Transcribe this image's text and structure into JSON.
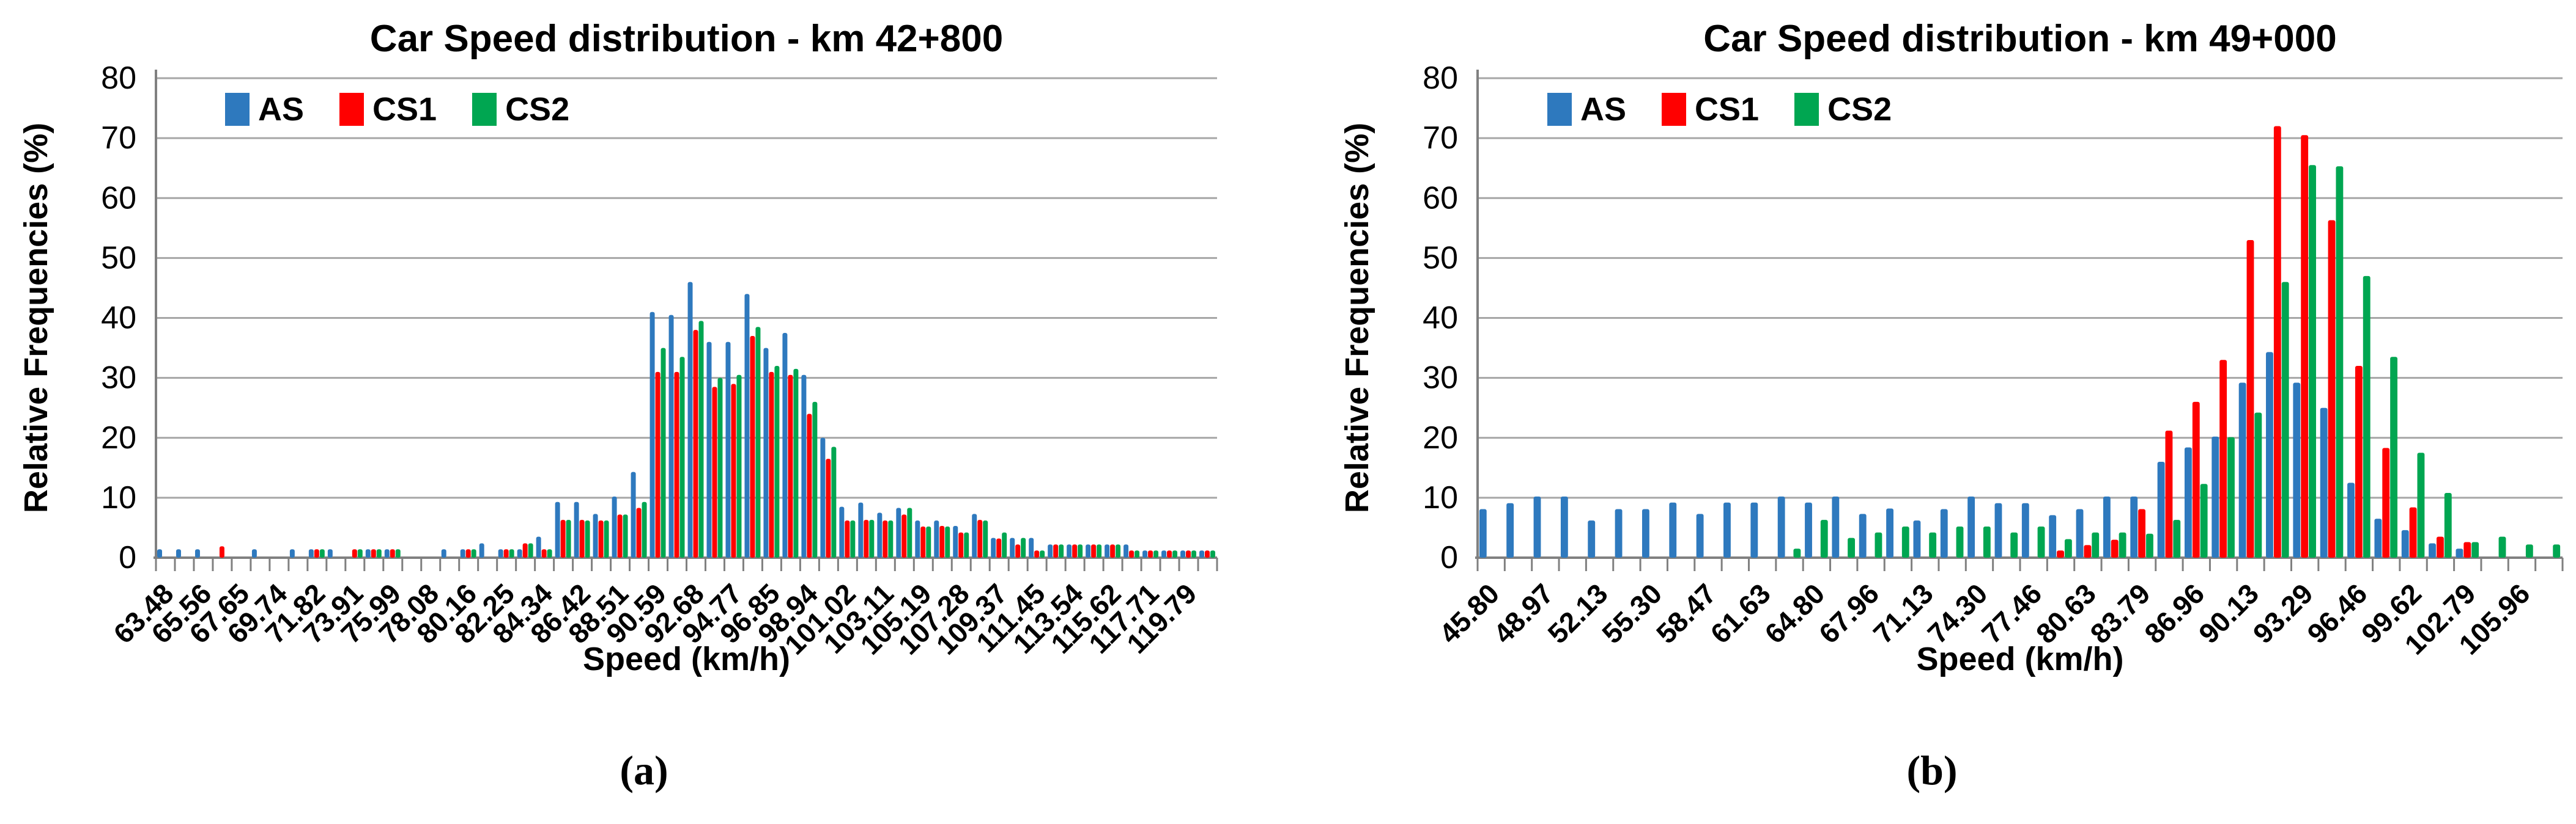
{
  "colors": {
    "AS": "#2E79BE",
    "CS1": "#FF0000",
    "CS2": "#00A651",
    "gridline": "#A6A6A6",
    "axis": "#808080",
    "text": "#000000"
  },
  "chart_data": [
    {
      "type": "bar",
      "key": "a",
      "title": "Car Speed distribution - km 42+800",
      "caption": "(a)",
      "ylabel": "Relative Frequencies (%)",
      "xlabel": "Speed (km/h)",
      "legend": [
        "AS",
        "CS1",
        "CS2"
      ],
      "legend_position": "top-left-inside",
      "grid": true,
      "ylim": [
        0,
        80
      ],
      "ytick_step": 10,
      "yticks": [
        0,
        10,
        20,
        30,
        40,
        50,
        60,
        70,
        80
      ],
      "bins": 56,
      "label_every": 2,
      "x_tick_labels": [
        "63.48",
        "65.56",
        "67.65",
        "69.74",
        "71.82",
        "73.91",
        "75.99",
        "78.08",
        "80.16",
        "82.25",
        "84.34",
        "86.42",
        "88.51",
        "90.59",
        "92.68",
        "94.77",
        "96.85",
        "98.94",
        "101.02",
        "103.11",
        "105.19",
        "107.28",
        "109.37",
        "111.45",
        "113.54",
        "115.62",
        "117.71",
        "119.79"
      ],
      "series": [
        {
          "name": "AS",
          "values": [
            1.4,
            1.4,
            1.4,
            0,
            0,
            1.4,
            0,
            1.4,
            1.4,
            1.4,
            0,
            1.4,
            1.4,
            0,
            0,
            1.4,
            1.4,
            2.4,
            1.4,
            1.4,
            3.5,
            9.3,
            9.3,
            7.3,
            10.2,
            14.3,
            41,
            40.5,
            46,
            36,
            36,
            44,
            35,
            37.5,
            30.5,
            20,
            8.5,
            9.2,
            7.5,
            8.3,
            6.2,
            6.2,
            5.3,
            7.3,
            3.3,
            3.3,
            3.3,
            2.2,
            2.2,
            2.2,
            2.2,
            2.2,
            1.2,
            1.2,
            1.2,
            1.2
          ]
        },
        {
          "name": "CS1",
          "values": [
            0,
            0,
            0,
            1.9,
            0,
            0,
            0,
            0,
            1.4,
            0,
            1.4,
            1.4,
            1.4,
            0,
            0,
            0,
            1.4,
            0,
            1.4,
            2.4,
            1.4,
            6.3,
            6.3,
            6.2,
            7.2,
            8.3,
            31,
            31,
            38,
            28.5,
            29,
            37,
            31,
            30.5,
            24,
            16.5,
            6.2,
            6.3,
            6.2,
            7.2,
            5.2,
            5.3,
            4.2,
            6.3,
            3.2,
            2.2,
            1.2,
            2.2,
            2.2,
            2.2,
            2.2,
            1.2,
            1.2,
            1.2,
            1.2,
            1.2
          ]
        },
        {
          "name": "CS2",
          "values": [
            0,
            0,
            0,
            0,
            0,
            0,
            0,
            0,
            1.4,
            0,
            1.4,
            1.4,
            1.4,
            0,
            0,
            0,
            1.4,
            0,
            1.4,
            2.4,
            1.4,
            6.3,
            6.2,
            6.2,
            7.2,
            9.3,
            35,
            33.5,
            39.5,
            30,
            30.5,
            38.5,
            32,
            31.5,
            26,
            18.5,
            6.2,
            6.3,
            6.2,
            8.3,
            5.2,
            5.2,
            4.2,
            6.2,
            4.2,
            3.3,
            1.2,
            2.2,
            2.2,
            2.2,
            2.2,
            1.2,
            1.2,
            1.2,
            1.2,
            1.2
          ]
        }
      ]
    },
    {
      "type": "bar",
      "key": "b",
      "title": "Car Speed distribution - km 49+000",
      "caption": "(b)",
      "ylabel": "Relative Frequencies (%)",
      "xlabel": "Speed (km/h)",
      "legend": [
        "AS",
        "CS1",
        "CS2"
      ],
      "legend_position": "top-left-inside",
      "grid": true,
      "ylim": [
        0,
        80
      ],
      "ytick_step": 10,
      "yticks": [
        0,
        10,
        20,
        30,
        40,
        50,
        60,
        70,
        80
      ],
      "bins": 40,
      "label_every": 2,
      "x_tick_labels": [
        "45.80",
        "48.97",
        "52.13",
        "55.30",
        "58.47",
        "61.63",
        "64.80",
        "67.96",
        "71.13",
        "74.30",
        "77.46",
        "80.63",
        "83.79",
        "86.96",
        "90.13",
        "93.29",
        "96.46",
        "99.62",
        "102.79",
        "105.96"
      ],
      "series": [
        {
          "name": "AS",
          "values": [
            8.1,
            9.1,
            10.2,
            10.2,
            6.2,
            8.1,
            8.1,
            9.2,
            7.3,
            9.2,
            9.2,
            10.2,
            9.2,
            10.2,
            7.3,
            8.2,
            6.2,
            8.1,
            10.2,
            9.1,
            9.1,
            7.1,
            8.1,
            10.2,
            10.2,
            16,
            18.4,
            20.2,
            29.2,
            34.3,
            29.2,
            25,
            12.5,
            6.5,
            4.6,
            2.4,
            1.5,
            0,
            0,
            0
          ]
        },
        {
          "name": "CS1",
          "values": [
            0,
            0,
            0,
            0,
            0,
            0,
            0,
            0,
            0,
            0,
            0,
            0,
            0,
            0,
            0,
            0,
            0,
            0,
            0,
            0,
            0,
            1.2,
            2.1,
            3,
            8.1,
            21.2,
            26,
            33,
            53,
            72,
            70.5,
            56.3,
            32,
            18.3,
            8.4,
            3.5,
            2.6,
            0,
            0,
            0
          ]
        },
        {
          "name": "CS2",
          "values": [
            0,
            0,
            0,
            0,
            0,
            0,
            0,
            0,
            0,
            0,
            0,
            1.5,
            6.3,
            3.3,
            4.2,
            5.2,
            4.2,
            5.2,
            5.2,
            4.2,
            5.2,
            3.1,
            4.2,
            4.2,
            4,
            6.3,
            12.3,
            20.1,
            24.2,
            46,
            65.5,
            65.3,
            47,
            33.5,
            17.5,
            10.8,
            2.6,
            3.5,
            2.2,
            2.2
          ]
        }
      ]
    }
  ]
}
